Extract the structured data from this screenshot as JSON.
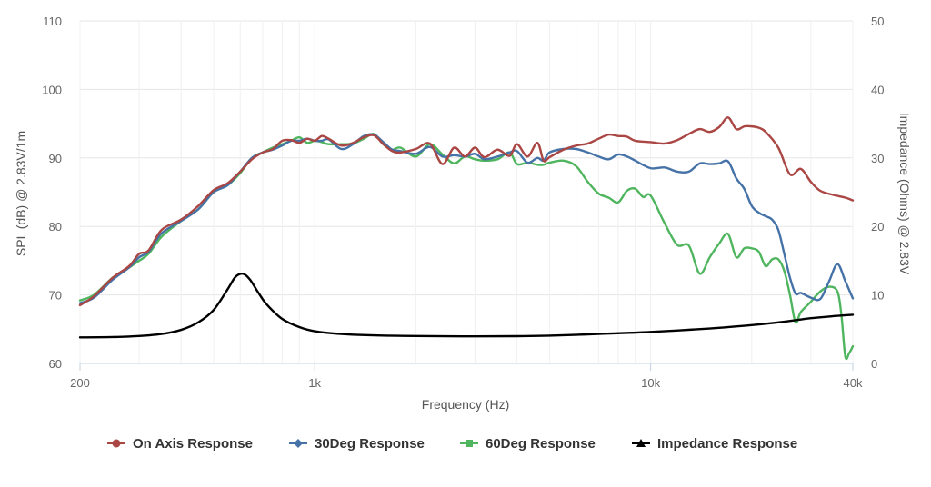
{
  "chart_data": {
    "type": "line",
    "xlabel": "Frequency (Hz)",
    "ylabel": "SPL (dB) @ 2.83V/1m",
    "ylabel_right": "Impedance (Ohms) @ 2.83V",
    "x_scale": "log",
    "xlim": [
      200,
      40000
    ],
    "x_ticks": [
      200,
      1000,
      10000,
      40000
    ],
    "x_tick_labels": [
      "200",
      "1k",
      "10k",
      "40k"
    ],
    "ylim": [
      60,
      110
    ],
    "y_ticks": [
      60,
      70,
      80,
      90,
      100,
      110
    ],
    "y_tick_labels": [
      "60",
      "70",
      "80",
      "90",
      "100",
      "110"
    ],
    "ylim_right": [
      0,
      50
    ],
    "y_ticks_right": [
      0,
      10,
      20,
      30,
      40,
      50
    ],
    "y_tick_labels_right": [
      "0",
      "10",
      "20",
      "30",
      "40",
      "50"
    ],
    "grid": true,
    "legend_position": "bottom",
    "series": [
      {
        "name": "On Axis Response",
        "color": "#aa4643",
        "marker": "circle",
        "axis": "left",
        "points": [
          [
            200,
            68.5
          ],
          [
            220,
            69.8
          ],
          [
            250,
            72.5
          ],
          [
            280,
            74.2
          ],
          [
            300,
            76
          ],
          [
            320,
            76.5
          ],
          [
            350,
            79.5
          ],
          [
            400,
            81
          ],
          [
            450,
            83
          ],
          [
            500,
            85.3
          ],
          [
            550,
            86.3
          ],
          [
            600,
            88
          ],
          [
            650,
            89.8
          ],
          [
            700,
            90.8
          ],
          [
            750,
            91.3
          ],
          [
            800,
            92.5
          ],
          [
            850,
            92.6
          ],
          [
            900,
            92.2
          ],
          [
            950,
            92.8
          ],
          [
            1000,
            92.5
          ],
          [
            1050,
            93.2
          ],
          [
            1100,
            92.8
          ],
          [
            1200,
            91.8
          ],
          [
            1300,
            92.2
          ],
          [
            1400,
            93
          ],
          [
            1500,
            93.3
          ],
          [
            1600,
            92
          ],
          [
            1700,
            91
          ],
          [
            1800,
            90.8
          ],
          [
            2000,
            91.3
          ],
          [
            2200,
            92.1
          ],
          [
            2400,
            89.1
          ],
          [
            2600,
            91.5
          ],
          [
            2800,
            90.2
          ],
          [
            3000,
            91.5
          ],
          [
            3200,
            90.1
          ],
          [
            3500,
            91.2
          ],
          [
            3800,
            90.3
          ],
          [
            4000,
            92
          ],
          [
            4300,
            90.2
          ],
          [
            4600,
            92.2
          ],
          [
            4800,
            89.6
          ],
          [
            5000,
            90.1
          ],
          [
            5500,
            91.2
          ],
          [
            6000,
            91.8
          ],
          [
            6500,
            92.1
          ],
          [
            7000,
            92.8
          ],
          [
            7500,
            93.4
          ],
          [
            8000,
            93.2
          ],
          [
            8500,
            93.1
          ],
          [
            9000,
            92.5
          ],
          [
            10000,
            92.3
          ],
          [
            11000,
            92.1
          ],
          [
            12000,
            92.6
          ],
          [
            13000,
            93.5
          ],
          [
            14000,
            94.2
          ],
          [
            15000,
            93.8
          ],
          [
            16000,
            94.5
          ],
          [
            17000,
            95.9
          ],
          [
            18000,
            94.2
          ],
          [
            19000,
            94.6
          ],
          [
            20000,
            94.6
          ],
          [
            21000,
            94.4
          ],
          [
            22000,
            93.8
          ],
          [
            24000,
            91.5
          ],
          [
            26000,
            87.6
          ],
          [
            28000,
            88.4
          ],
          [
            30000,
            86.5
          ],
          [
            32000,
            85.2
          ],
          [
            35000,
            84.6
          ],
          [
            38000,
            84.2
          ],
          [
            40000,
            83.8
          ]
        ]
      },
      {
        "name": "30Deg Response",
        "color": "#4572a7",
        "marker": "diamond",
        "axis": "left",
        "points": [
          [
            200,
            68.8
          ],
          [
            220,
            69.6
          ],
          [
            250,
            72.2
          ],
          [
            280,
            74
          ],
          [
            300,
            75.5
          ],
          [
            320,
            76.3
          ],
          [
            350,
            79
          ],
          [
            400,
            80.8
          ],
          [
            450,
            82.5
          ],
          [
            500,
            85
          ],
          [
            550,
            86
          ],
          [
            600,
            88
          ],
          [
            650,
            90
          ],
          [
            700,
            90.8
          ],
          [
            750,
            91.2
          ],
          [
            800,
            91.8
          ],
          [
            850,
            92.5
          ],
          [
            900,
            92.5
          ],
          [
            950,
            92.8
          ],
          [
            1000,
            92.5
          ],
          [
            1050,
            92.5
          ],
          [
            1100,
            92.7
          ],
          [
            1200,
            91.3
          ],
          [
            1300,
            92
          ],
          [
            1400,
            93.2
          ],
          [
            1500,
            93.4
          ],
          [
            1600,
            92.3
          ],
          [
            1700,
            91.2
          ],
          [
            1800,
            91
          ],
          [
            2000,
            90.6
          ],
          [
            2200,
            91.6
          ],
          [
            2400,
            90.2
          ],
          [
            2600,
            90.4
          ],
          [
            2800,
            90.2
          ],
          [
            3000,
            90.6
          ],
          [
            3200,
            89.8
          ],
          [
            3500,
            90.2
          ],
          [
            3800,
            90.8
          ],
          [
            4000,
            91
          ],
          [
            4300,
            89.3
          ],
          [
            4600,
            90
          ],
          [
            4800,
            89.6
          ],
          [
            5000,
            90.8
          ],
          [
            5500,
            91.3
          ],
          [
            6000,
            91.3
          ],
          [
            6500,
            90.8
          ],
          [
            7000,
            90.2
          ],
          [
            7500,
            89.8
          ],
          [
            8000,
            90.5
          ],
          [
            8500,
            90.2
          ],
          [
            9000,
            89.6
          ],
          [
            10000,
            88.5
          ],
          [
            11000,
            88.6
          ],
          [
            12000,
            88
          ],
          [
            13000,
            88
          ],
          [
            14000,
            89.2
          ],
          [
            15000,
            89.1
          ],
          [
            16000,
            89.2
          ],
          [
            17000,
            89.5
          ],
          [
            18000,
            87
          ],
          [
            19000,
            85.5
          ],
          [
            20000,
            83
          ],
          [
            21000,
            82
          ],
          [
            22000,
            81.5
          ],
          [
            23000,
            81
          ],
          [
            24000,
            79.5
          ],
          [
            25000,
            76
          ],
          [
            26000,
            72.5
          ],
          [
            27000,
            70.2
          ],
          [
            28000,
            70.3
          ],
          [
            30000,
            69.6
          ],
          [
            32000,
            69.4
          ],
          [
            34000,
            72
          ],
          [
            36000,
            74.5
          ],
          [
            38000,
            72
          ],
          [
            40000,
            69.5
          ]
        ]
      },
      {
        "name": "60Deg Response",
        "color": "#4fb55e",
        "marker": "square",
        "axis": "left",
        "points": [
          [
            200,
            69.2
          ],
          [
            220,
            70
          ],
          [
            250,
            72.5
          ],
          [
            280,
            74
          ],
          [
            300,
            75
          ],
          [
            320,
            76
          ],
          [
            350,
            78.5
          ],
          [
            400,
            80.8
          ],
          [
            450,
            82.5
          ],
          [
            500,
            85
          ],
          [
            550,
            86
          ],
          [
            600,
            87.8
          ],
          [
            650,
            90
          ],
          [
            700,
            90.8
          ],
          [
            750,
            91.5
          ],
          [
            800,
            92
          ],
          [
            850,
            92.5
          ],
          [
            900,
            93
          ],
          [
            950,
            92.2
          ],
          [
            1000,
            92.5
          ],
          [
            1050,
            92.3
          ],
          [
            1100,
            92
          ],
          [
            1200,
            92
          ],
          [
            1300,
            92.1
          ],
          [
            1400,
            92.8
          ],
          [
            1500,
            93.5
          ],
          [
            1600,
            92
          ],
          [
            1700,
            91.2
          ],
          [
            1800,
            91.5
          ],
          [
            2000,
            90.2
          ],
          [
            2200,
            92
          ],
          [
            2400,
            90.5
          ],
          [
            2600,
            89.2
          ],
          [
            2800,
            90.2
          ],
          [
            3000,
            89.8
          ],
          [
            3200,
            89.6
          ],
          [
            3500,
            89.8
          ],
          [
            3800,
            90.8
          ],
          [
            4000,
            89.1
          ],
          [
            4300,
            89.3
          ],
          [
            4600,
            89
          ],
          [
            4800,
            89
          ],
          [
            5000,
            89.3
          ],
          [
            5500,
            89.6
          ],
          [
            6000,
            88.8
          ],
          [
            6500,
            86.5
          ],
          [
            7000,
            84.8
          ],
          [
            7500,
            84.2
          ],
          [
            8000,
            83.5
          ],
          [
            8500,
            85.2
          ],
          [
            9000,
            85.5
          ],
          [
            9500,
            84.3
          ],
          [
            10000,
            84.5
          ],
          [
            11000,
            80.5
          ],
          [
            12000,
            77.3
          ],
          [
            13000,
            77.2
          ],
          [
            14000,
            73.1
          ],
          [
            15000,
            75.5
          ],
          [
            16000,
            77.5
          ],
          [
            17000,
            78.9
          ],
          [
            18000,
            75.5
          ],
          [
            19000,
            76.8
          ],
          [
            20000,
            76.8
          ],
          [
            21000,
            76.3
          ],
          [
            22000,
            74.2
          ],
          [
            23000,
            75.2
          ],
          [
            24000,
            75.2
          ],
          [
            25000,
            73.5
          ],
          [
            26000,
            70
          ],
          [
            27000,
            66
          ],
          [
            28000,
            67.5
          ],
          [
            30000,
            69
          ],
          [
            32000,
            70.5
          ],
          [
            34000,
            71.2
          ],
          [
            36000,
            70.5
          ],
          [
            37000,
            67
          ],
          [
            38000,
            61
          ],
          [
            39000,
            61.5
          ],
          [
            40000,
            62.5
          ]
        ]
      },
      {
        "name": "Impedance Response",
        "color": "#000000",
        "marker": "triangle",
        "axis": "right",
        "points": [
          [
            200,
            3.8
          ],
          [
            250,
            3.85
          ],
          [
            300,
            4.0
          ],
          [
            350,
            4.3
          ],
          [
            400,
            4.9
          ],
          [
            450,
            6.0
          ],
          [
            500,
            7.8
          ],
          [
            550,
            10.8
          ],
          [
            580,
            12.6
          ],
          [
            610,
            13.1
          ],
          [
            640,
            12.3
          ],
          [
            680,
            10.3
          ],
          [
            720,
            8.6
          ],
          [
            800,
            6.5
          ],
          [
            900,
            5.3
          ],
          [
            1000,
            4.7
          ],
          [
            1200,
            4.3
          ],
          [
            1500,
            4.1
          ],
          [
            2000,
            4.0
          ],
          [
            3000,
            3.95
          ],
          [
            4000,
            3.98
          ],
          [
            5000,
            4.05
          ],
          [
            7000,
            4.3
          ],
          [
            10000,
            4.6
          ],
          [
            15000,
            5.1
          ],
          [
            20000,
            5.6
          ],
          [
            25000,
            6.1
          ],
          [
            30000,
            6.6
          ],
          [
            35000,
            6.9
          ],
          [
            40000,
            7.1
          ]
        ]
      }
    ]
  }
}
